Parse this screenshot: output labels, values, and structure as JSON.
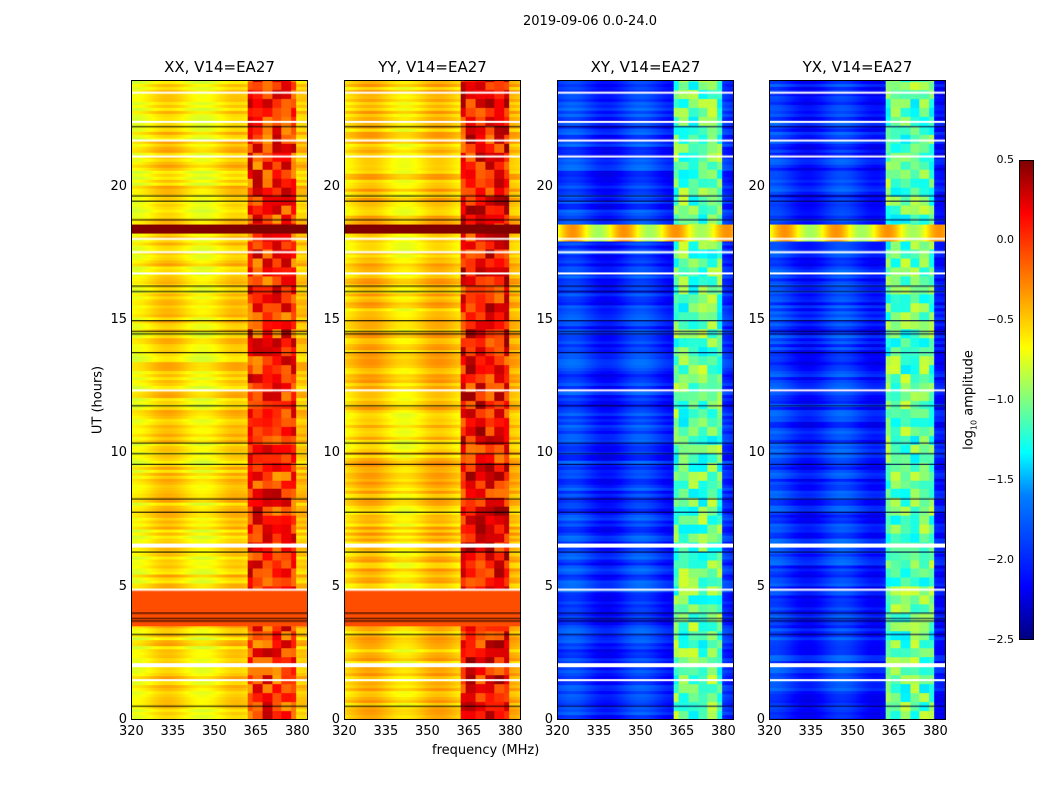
{
  "suptitle": "2019-09-06 0.0-24.0",
  "chart_data": {
    "type": "heatmap",
    "xlabel": "frequency (MHz)",
    "ylabel": "UT (hours)",
    "xlim": [
      320,
      384
    ],
    "ylim": [
      0,
      24
    ],
    "xticks": [
      "320",
      "335",
      "350",
      "365",
      "380"
    ],
    "yticks": [
      "0",
      "5",
      "10",
      "15",
      "20"
    ],
    "colorbar": {
      "label_main": "log",
      "label_sub": "10",
      "label_rest": " amplitude",
      "range": [
        -2.5,
        0.5
      ],
      "ticks": [
        "0.5",
        "0.0",
        "−0.5",
        "−1.0",
        "−1.5",
        "−2.0",
        "−2.5"
      ],
      "colormap": "jet"
    },
    "panels": [
      {
        "title": "XX, V14=EA27",
        "base_level": -0.55,
        "rfi_level": 0.0,
        "rfi_band": [
          362,
          380
        ],
        "strong_band": [
          18.3,
          18.6
        ]
      },
      {
        "title": "YY, V14=EA27",
        "base_level": -0.5,
        "rfi_level": 0.1,
        "rfi_band": [
          362,
          380
        ],
        "strong_band": [
          18.3,
          18.6
        ]
      },
      {
        "title": "XY, V14=EA27",
        "base_level": -2.0,
        "rfi_level": -1.1,
        "rfi_band": [
          362,
          380
        ],
        "strong_band": [
          18.0,
          18.6
        ]
      },
      {
        "title": "YX, V14=EA27",
        "base_level": -2.0,
        "rfi_level": -1.1,
        "rfi_band": [
          362,
          380
        ],
        "strong_band": [
          18.0,
          18.6
        ]
      }
    ],
    "flagged_hours_white": [
      23.6,
      22.5,
      21.8,
      21.2,
      18.1,
      17.6,
      16.8,
      12.4,
      6.6,
      4.9,
      2.1,
      1.5
    ],
    "flagged_hours_black": [
      22.3,
      19.7,
      19.5,
      18.8,
      16.3,
      16.1,
      15.0,
      14.6,
      14.5,
      13.8,
      11.8,
      10.4,
      10.0,
      9.6,
      8.3,
      7.8,
      6.3,
      4.0,
      3.8,
      3.7,
      3.2,
      0.5
    ]
  }
}
